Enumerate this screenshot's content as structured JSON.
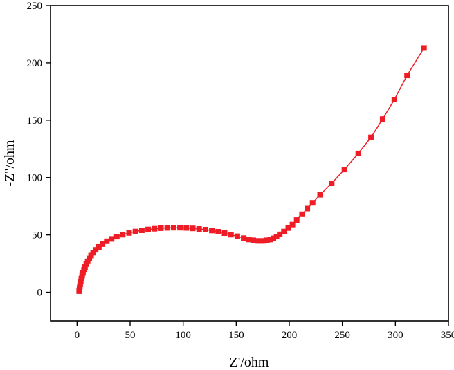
{
  "chart_data": {
    "type": "line",
    "title": "",
    "xlabel": "Z'/ohm",
    "ylabel": "-Z''/ohm",
    "xlim": [
      -25,
      350
    ],
    "ylim": [
      -25,
      250
    ],
    "xticks": [
      0,
      50,
      100,
      150,
      200,
      250,
      300,
      350
    ],
    "yticks": [
      0,
      50,
      100,
      150,
      200,
      250
    ],
    "xtick_labels": [
      "0",
      "50",
      "100",
      "150",
      "200",
      "250",
      "300",
      "350"
    ],
    "ytick_labels": [
      "0",
      "50",
      "100",
      "150",
      "200",
      "250"
    ],
    "grid": false,
    "legend": "none",
    "series": [
      {
        "marker": "square",
        "color": "#ee1c25",
        "x": [
          2.0,
          2.3,
          2.6,
          3.0,
          3.5,
          4.1,
          4.8,
          5.6,
          6.5,
          7.5,
          8.7,
          10.0,
          11.5,
          13.2,
          15.2,
          17.5,
          20.5,
          24,
          28,
          32.5,
          37.5,
          43,
          49,
          55,
          61,
          67,
          73,
          79,
          85,
          91,
          97,
          103,
          109,
          115,
          121,
          127,
          133,
          139,
          145,
          151,
          157,
          162,
          166,
          170,
          173,
          176,
          179,
          182,
          185,
          188,
          191,
          195,
          199,
          203,
          207,
          212,
          217,
          222,
          229,
          240,
          252,
          265,
          277,
          288,
          299,
          311,
          327
        ],
        "y": [
          1.0,
          3.0,
          5.0,
          7.0,
          9.5,
          12.0,
          14.5,
          17.0,
          19.5,
          22.0,
          24.5,
          27.0,
          29.5,
          32.0,
          34.5,
          37.0,
          39.5,
          42.0,
          44.5,
          46.5,
          48.5,
          50.2,
          51.7,
          53.0,
          54.0,
          54.8,
          55.4,
          55.9,
          56.2,
          56.3,
          56.3,
          56.1,
          55.7,
          55.2,
          54.6,
          53.8,
          52.8,
          51.6,
          50.2,
          48.8,
          47.2,
          46.0,
          45.3,
          44.8,
          44.7,
          44.8,
          45.3,
          46.0,
          47.0,
          48.5,
          50.5,
          53.0,
          56.0,
          59.0,
          63.0,
          68.0,
          73.0,
          78.0,
          85.0,
          95.0,
          107.0,
          121.0,
          135.0,
          151.0,
          168.0,
          189.0,
          213.0
        ]
      }
    ]
  }
}
